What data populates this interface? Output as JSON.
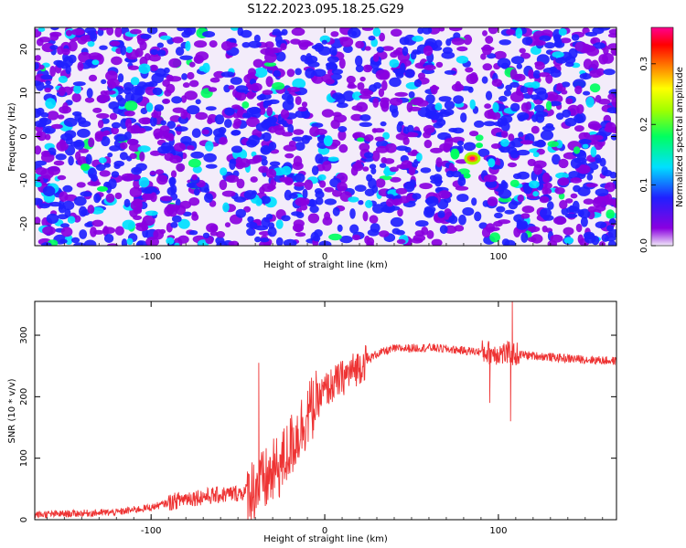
{
  "title": "S122.2023.095.18.25.G29",
  "chart_data": [
    {
      "type": "heatmap",
      "xlabel": "Height of straight line (km)",
      "ylabel": "Frequency (Hz)",
      "xlim": [
        -167,
        168
      ],
      "ylim": [
        -25,
        25
      ],
      "x_ticks": [
        -100,
        0,
        100
      ],
      "y_ticks": [
        -20,
        -10,
        0,
        10,
        20
      ],
      "colorbar": {
        "label": "Normalized spectral amplitude",
        "range": [
          0.0,
          0.36
        ],
        "ticks": [
          "0.0",
          "0.1",
          "0.2",
          "0.3"
        ],
        "colormap": [
          "#f0e8f8",
          "#8a00e0",
          "#2020ff",
          "#00e0ff",
          "#00ff60",
          "#a0ff00",
          "#ffff00",
          "#ff8000",
          "#ff0000",
          "#ff0090"
        ]
      },
      "peak": {
        "x": 85,
        "y": -5,
        "value": 0.36
      }
    },
    {
      "type": "line",
      "xlabel": "Height of straight line (km)",
      "ylabel": "SNR (10 * v/v)",
      "xlim": [
        -167,
        168
      ],
      "ylim": [
        0,
        355
      ],
      "x_ticks": [
        -100,
        0,
        100
      ],
      "y_ticks": [
        0,
        100,
        200,
        300
      ],
      "color": "#ee3333",
      "series_trend": {
        "x": [
          -167,
          -120,
          -100,
          -80,
          -60,
          -45,
          -35,
          -25,
          -10,
          0,
          10,
          20,
          30,
          40,
          60,
          80,
          95,
          105,
          115,
          140,
          168
        ],
        "y": [
          8,
          12,
          20,
          35,
          40,
          45,
          60,
          90,
          170,
          210,
          230,
          250,
          270,
          278,
          280,
          275,
          272,
          270,
          268,
          262,
          258
        ]
      },
      "notable_points": [
        {
          "x": -38,
          "y": 255
        },
        {
          "x": 95,
          "y": 190
        },
        {
          "x": 107,
          "y": 160
        },
        {
          "x": 108,
          "y": 355
        }
      ]
    }
  ]
}
